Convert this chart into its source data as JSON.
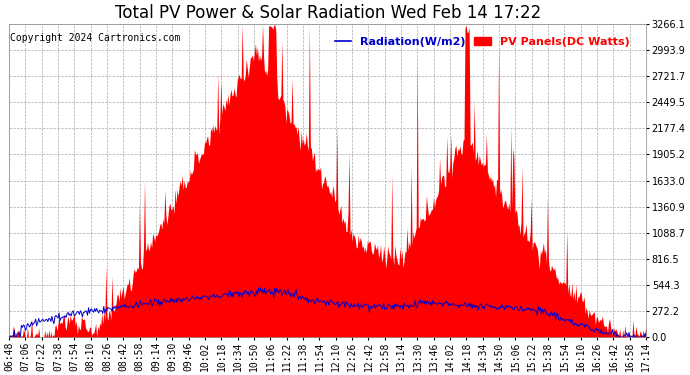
{
  "title": "Total PV Power & Solar Radiation Wed Feb 14 17:22",
  "copyright_text": "Copyright 2024 Cartronics.com",
  "legend_radiation": "Radiation(W/m2)",
  "legend_pv": "PV Panels(DC Watts)",
  "background_color": "#ffffff",
  "plot_bg_color": "#ffffff",
  "grid_color": "#aaaaaa",
  "red_color": "#ff0000",
  "blue_color": "#0000cc",
  "ytick_labels": [
    "0.0",
    "272.2",
    "544.3",
    "816.5",
    "1088.7",
    "1360.9",
    "1633.0",
    "1905.2",
    "2177.4",
    "2449.5",
    "2721.7",
    "2993.9",
    "3266.1"
  ],
  "ytick_values": [
    0.0,
    272.2,
    544.3,
    816.5,
    1088.7,
    1360.9,
    1633.0,
    1905.2,
    2177.4,
    2449.5,
    2721.7,
    2993.9,
    3266.1
  ],
  "ymax": 3266.1,
  "ymin": 0.0,
  "title_fontsize": 12,
  "copyright_fontsize": 7,
  "legend_fontsize": 8,
  "tick_fontsize": 7,
  "xtick_labels": [
    "06:48",
    "07:06",
    "07:22",
    "07:38",
    "07:54",
    "08:10",
    "08:26",
    "08:42",
    "08:58",
    "09:14",
    "09:30",
    "09:46",
    "10:02",
    "10:18",
    "10:34",
    "10:50",
    "11:06",
    "11:22",
    "11:38",
    "11:54",
    "12:10",
    "12:26",
    "12:42",
    "12:58",
    "13:14",
    "13:30",
    "13:46",
    "14:02",
    "14:18",
    "14:34",
    "14:50",
    "15:06",
    "15:22",
    "15:38",
    "15:54",
    "16:10",
    "16:26",
    "16:42",
    "16:58",
    "17:14"
  ]
}
